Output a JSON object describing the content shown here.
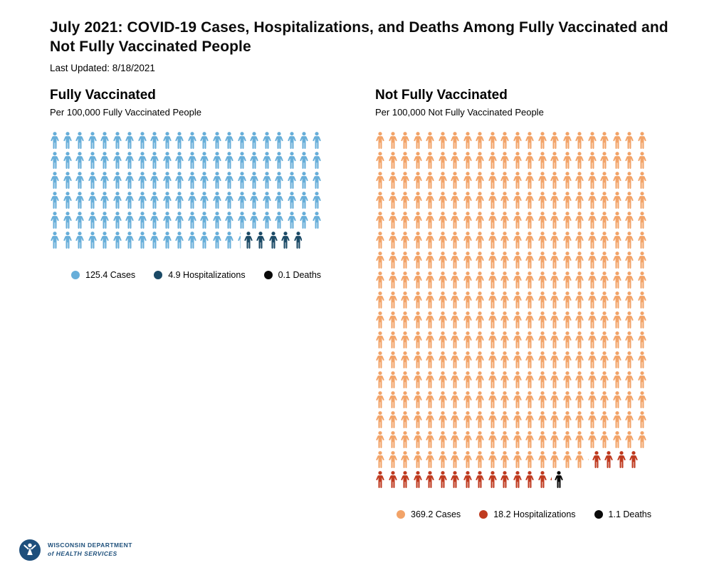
{
  "page": {
    "title_prefix": "July 2021:",
    "title_rest": " COVID-19 Cases, Hospitalizations, and Deaths Among Fully Vaccinated and Not Fully Vaccinated People",
    "last_updated": "Last Updated: 8/18/2021"
  },
  "footer": {
    "org_line1": "WISCONSIN DEPARTMENT",
    "org_line2": "of HEALTH SERVICES"
  },
  "chart_data": [
    {
      "type": "pictogram",
      "title": "Fully Vaccinated",
      "subtitle": "Per 100,000 Fully Vaccinated People",
      "unit": "per 100,000 people",
      "icon_value": 1,
      "icons_per_row": 22,
      "series": [
        {
          "name": "Cases",
          "value": 125.4,
          "color": "#67aed9",
          "label": "125.4 Cases"
        },
        {
          "name": "Hospitalizations",
          "value": 4.9,
          "color": "#1b4a66",
          "label": "4.9 Hospitalizations"
        },
        {
          "name": "Deaths",
          "value": 0.1,
          "color": "#0a0a0a",
          "label": "0.1 Deaths"
        }
      ]
    },
    {
      "type": "pictogram",
      "title": "Not Fully Vaccinated",
      "subtitle": "Per 100,000 Not Fully Vaccinated People",
      "unit": "per 100,000 people",
      "icon_value": 1,
      "icons_per_row": 22,
      "series": [
        {
          "name": "Cases",
          "value": 369.2,
          "color": "#f2a368",
          "label": "369.2 Cases"
        },
        {
          "name": "Hospitalizations",
          "value": 18.2,
          "color": "#bf3a1f",
          "label": "18.2 Hospitalizations"
        },
        {
          "name": "Deaths",
          "value": 1.1,
          "color": "#0a0a0a",
          "label": "1.1 Deaths"
        }
      ]
    }
  ]
}
